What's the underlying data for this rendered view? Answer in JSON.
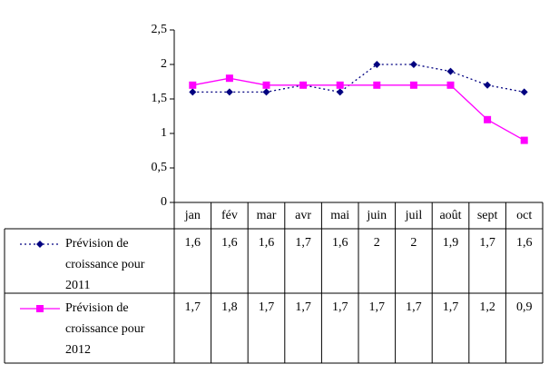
{
  "chart_data": {
    "type": "line",
    "categories": [
      "jan",
      "fév",
      "mar",
      "avr",
      "mai",
      "juin",
      "juil",
      "août",
      "sept",
      "oct"
    ],
    "series": [
      {
        "name": "Prévision de croissance pour 2011",
        "color": "#000080",
        "marker": "diamond",
        "dash": "dotted",
        "values": [
          1.6,
          1.6,
          1.6,
          1.7,
          1.6,
          2,
          2,
          1.9,
          1.7,
          1.6
        ],
        "value_labels": [
          "1,6",
          "1,6",
          "1,6",
          "1,7",
          "1,6",
          "2",
          "2",
          "1,9",
          "1,7",
          "1,6"
        ]
      },
      {
        "name": "Prévision de croissance pour 2012",
        "color": "#ff00ff",
        "marker": "square",
        "dash": "solid",
        "values": [
          1.7,
          1.8,
          1.7,
          1.7,
          1.7,
          1.7,
          1.7,
          1.7,
          1.2,
          0.9
        ],
        "value_labels": [
          "1,7",
          "1,8",
          "1,7",
          "1,7",
          "1,7",
          "1,7",
          "1,7",
          "1,7",
          "1,2",
          "0,9"
        ]
      }
    ],
    "ylim": [
      0,
      2.5
    ],
    "yticks": [
      0,
      {
        "value": 0.5,
        "label": "0,5"
      },
      1,
      {
        "value": 1.5,
        "label": "1,5"
      },
      2,
      {
        "value": 2.5,
        "label": "2,5"
      }
    ],
    "grid": false,
    "data_table": true
  }
}
